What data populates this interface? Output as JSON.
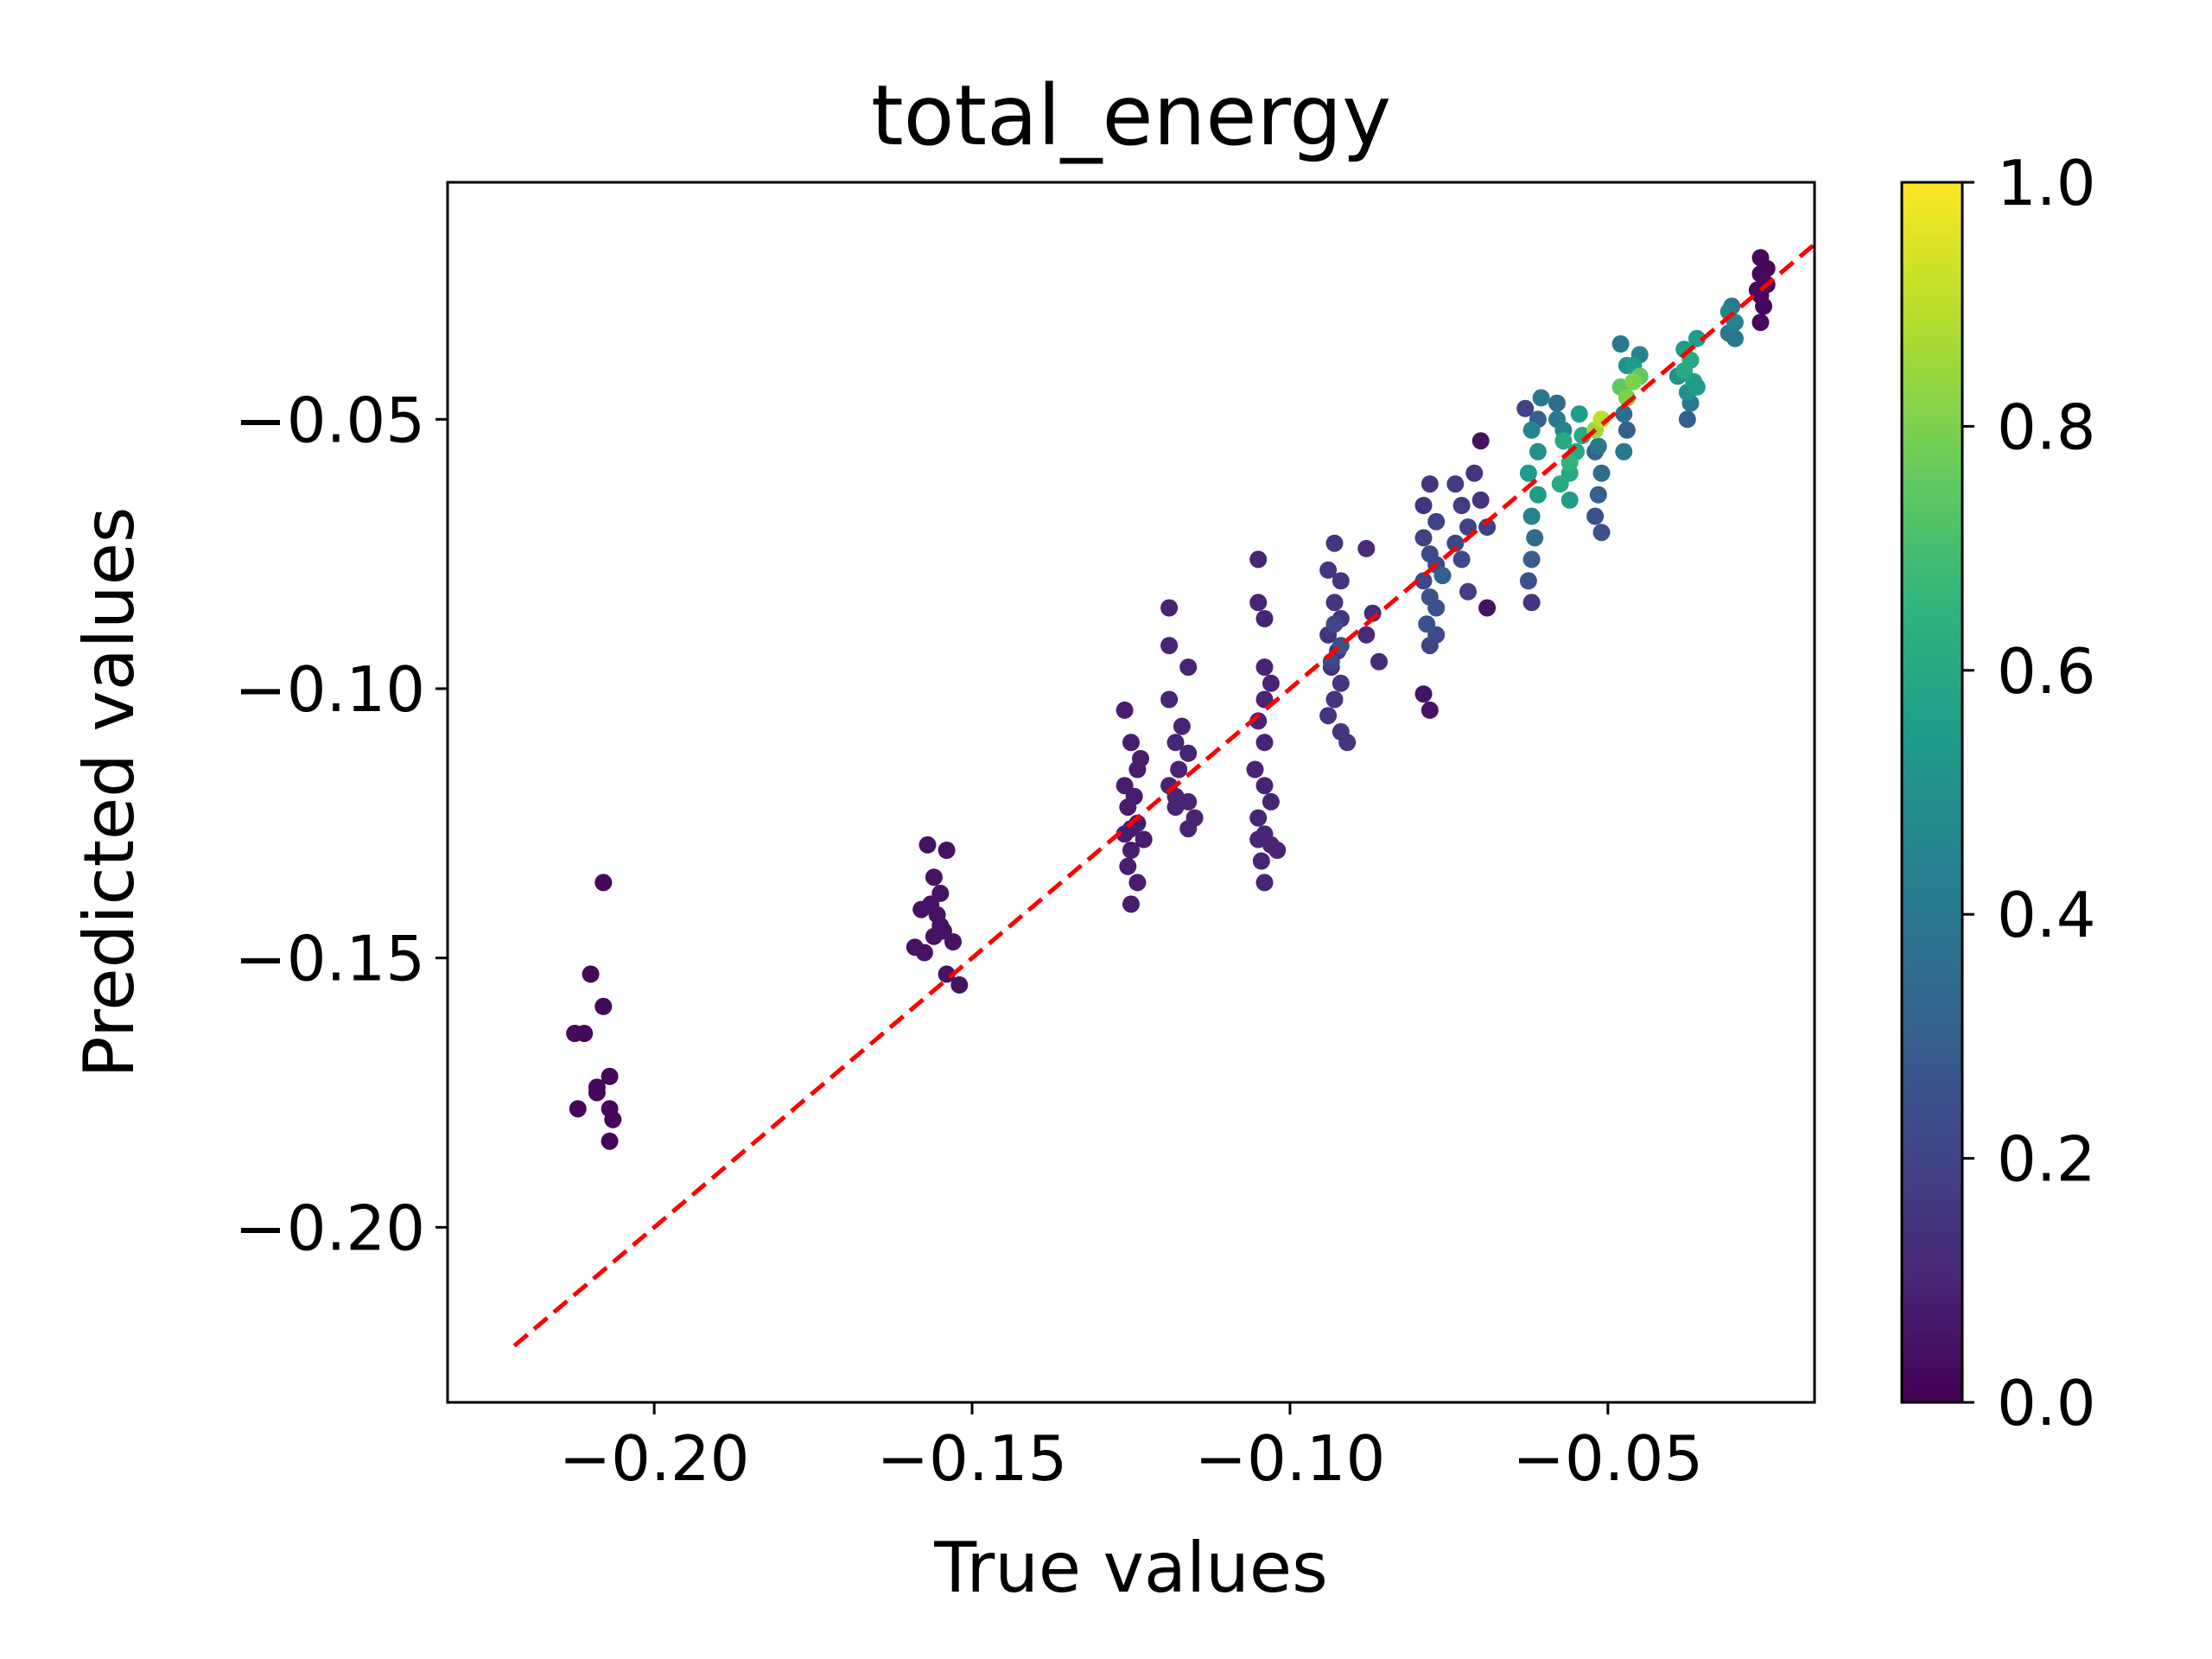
{
  "chart_data": {
    "type": "scatter",
    "title": "total_energy",
    "xlabel": "True values",
    "ylabel": "Predicted values",
    "xlim": [
      -0.2325,
      -0.0175
    ],
    "ylim": [
      -0.2325,
      -0.006
    ],
    "x_ticks": [
      -0.2,
      -0.15,
      -0.1,
      -0.05
    ],
    "x_tick_labels": [
      "−0.20",
      "−0.15",
      "−0.10",
      "−0.05"
    ],
    "y_ticks": [
      -0.2,
      -0.15,
      -0.1,
      -0.05
    ],
    "y_tick_labels": [
      "−0.20",
      "−0.15",
      "−0.10",
      "−0.05"
    ],
    "grid": false,
    "reference_line": {
      "style": "dashed",
      "color": "#ff0000",
      "from": [
        -0.222,
        -0.222
      ],
      "to": [
        -0.016,
        -0.016
      ]
    },
    "colorbar": {
      "colormap": "viridis",
      "range": [
        0.0,
        1.0
      ],
      "ticks": [
        0.0,
        0.2,
        0.4,
        0.6,
        0.8,
        1.0
      ],
      "tick_labels": [
        "0.0",
        "0.2",
        "0.4",
        "0.6",
        "0.8",
        "1.0"
      ]
    },
    "colormap_stops": [
      "#440154",
      "#482878",
      "#3e4989",
      "#31688e",
      "#26828e",
      "#1f9e89",
      "#35b779",
      "#6ece58",
      "#b5de2b",
      "#fde725"
    ],
    "series": [
      {
        "points": [
          [
            -0.2125,
            -0.164,
            0.02
          ],
          [
            -0.211,
            -0.164,
            0.02
          ],
          [
            -0.21,
            -0.153,
            0.02
          ],
          [
            -0.208,
            -0.136,
            0.02
          ],
          [
            -0.209,
            -0.174,
            0.02
          ],
          [
            -0.207,
            -0.172,
            0.02
          ],
          [
            -0.208,
            -0.159,
            0.02
          ],
          [
            -0.212,
            -0.178,
            0.02
          ],
          [
            -0.207,
            -0.178,
            0.02
          ],
          [
            -0.2065,
            -0.18,
            0.02
          ],
          [
            -0.207,
            -0.184,
            0.02
          ],
          [
            -0.209,
            -0.175,
            0.02
          ],
          [
            -0.157,
            -0.129,
            0.05
          ],
          [
            -0.154,
            -0.13,
            0.05
          ],
          [
            -0.156,
            -0.135,
            0.05
          ],
          [
            -0.155,
            -0.138,
            0.05
          ],
          [
            -0.158,
            -0.141,
            0.05
          ],
          [
            -0.1555,
            -0.142,
            0.05
          ],
          [
            -0.156,
            -0.146,
            0.05
          ],
          [
            -0.159,
            -0.148,
            0.05
          ],
          [
            -0.1545,
            -0.145,
            0.05
          ],
          [
            -0.153,
            -0.147,
            0.05
          ],
          [
            -0.1575,
            -0.149,
            0.05
          ],
          [
            -0.154,
            -0.153,
            0.05
          ],
          [
            -0.152,
            -0.155,
            0.05
          ],
          [
            -0.1565,
            -0.14,
            0.05
          ],
          [
            -0.155,
            -0.144,
            0.05
          ],
          [
            -0.126,
            -0.104,
            0.08
          ],
          [
            -0.125,
            -0.11,
            0.08
          ],
          [
            -0.124,
            -0.115,
            0.08
          ],
          [
            -0.126,
            -0.118,
            0.08
          ],
          [
            -0.1245,
            -0.12,
            0.08
          ],
          [
            -0.1255,
            -0.122,
            0.08
          ],
          [
            -0.124,
            -0.125,
            0.08
          ],
          [
            -0.126,
            -0.127,
            0.08
          ],
          [
            -0.123,
            -0.128,
            0.08
          ],
          [
            -0.125,
            -0.13,
            0.08
          ],
          [
            -0.124,
            -0.136,
            0.08
          ],
          [
            -0.125,
            -0.14,
            0.08
          ],
          [
            -0.1255,
            -0.133,
            0.08
          ],
          [
            -0.1235,
            -0.113,
            0.08
          ],
          [
            -0.125,
            -0.126,
            0.08
          ],
          [
            -0.119,
            -0.085,
            0.1
          ],
          [
            -0.119,
            -0.092,
            0.1
          ],
          [
            -0.116,
            -0.096,
            0.1
          ],
          [
            -0.119,
            -0.102,
            0.1
          ],
          [
            -0.117,
            -0.107,
            0.1
          ],
          [
            -0.118,
            -0.11,
            0.1
          ],
          [
            -0.116,
            -0.112,
            0.1
          ],
          [
            -0.1175,
            -0.115,
            0.1
          ],
          [
            -0.119,
            -0.118,
            0.1
          ],
          [
            -0.116,
            -0.121,
            0.1
          ],
          [
            -0.118,
            -0.122,
            0.1
          ],
          [
            -0.115,
            -0.124,
            0.1
          ],
          [
            -0.116,
            -0.126,
            0.1
          ],
          [
            -0.118,
            -0.12,
            0.1
          ],
          [
            -0.105,
            -0.076,
            0.1
          ],
          [
            -0.105,
            -0.084,
            0.1
          ],
          [
            -0.104,
            -0.087,
            0.1
          ],
          [
            -0.104,
            -0.096,
            0.1
          ],
          [
            -0.103,
            -0.099,
            0.1
          ],
          [
            -0.104,
            -0.102,
            0.1
          ],
          [
            -0.105,
            -0.106,
            0.1
          ],
          [
            -0.104,
            -0.11,
            0.1
          ],
          [
            -0.1055,
            -0.115,
            0.1
          ],
          [
            -0.104,
            -0.118,
            0.1
          ],
          [
            -0.103,
            -0.121,
            0.1
          ],
          [
            -0.105,
            -0.124,
            0.1
          ],
          [
            -0.104,
            -0.127,
            0.1
          ],
          [
            -0.103,
            -0.129,
            0.1
          ],
          [
            -0.1045,
            -0.132,
            0.1
          ],
          [
            -0.104,
            -0.136,
            0.1
          ],
          [
            -0.102,
            -0.13,
            0.1
          ],
          [
            -0.105,
            -0.128,
            0.1
          ],
          [
            -0.093,
            -0.073,
            0.15
          ],
          [
            -0.094,
            -0.078,
            0.15
          ],
          [
            -0.092,
            -0.08,
            0.15
          ],
          [
            -0.093,
            -0.084,
            0.15
          ],
          [
            -0.092,
            -0.087,
            0.15
          ],
          [
            -0.094,
            -0.09,
            0.15
          ],
          [
            -0.0925,
            -0.093,
            0.15
          ],
          [
            -0.0935,
            -0.096,
            0.15
          ],
          [
            -0.092,
            -0.099,
            0.15
          ],
          [
            -0.093,
            -0.102,
            0.15
          ],
          [
            -0.094,
            -0.105,
            0.15
          ],
          [
            -0.092,
            -0.108,
            0.15
          ],
          [
            -0.091,
            -0.11,
            0.15
          ],
          [
            -0.093,
            -0.088,
            0.22
          ],
          [
            -0.092,
            -0.092,
            0.25
          ],
          [
            -0.0935,
            -0.095,
            0.22
          ],
          [
            -0.088,
            -0.074,
            0.12
          ],
          [
            -0.087,
            -0.086,
            0.12
          ],
          [
            -0.088,
            -0.09,
            0.12
          ],
          [
            -0.086,
            -0.095,
            0.12
          ],
          [
            -0.078,
            -0.062,
            0.15
          ],
          [
            -0.079,
            -0.066,
            0.15
          ],
          [
            -0.077,
            -0.069,
            0.2
          ],
          [
            -0.079,
            -0.072,
            0.2
          ],
          [
            -0.078,
            -0.075,
            0.22
          ],
          [
            -0.077,
            -0.077,
            0.22
          ],
          [
            -0.079,
            -0.08,
            0.22
          ],
          [
            -0.078,
            -0.083,
            0.25
          ],
          [
            -0.077,
            -0.085,
            0.25
          ],
          [
            -0.0785,
            -0.088,
            0.25
          ],
          [
            -0.077,
            -0.09,
            0.22
          ],
          [
            -0.078,
            -0.092,
            0.2
          ],
          [
            -0.079,
            -0.101,
            0.05
          ],
          [
            -0.078,
            -0.104,
            0.05
          ],
          [
            -0.076,
            -0.079,
            0.3
          ],
          [
            -0.074,
            -0.062,
            0.18
          ],
          [
            -0.073,
            -0.066,
            0.18
          ],
          [
            -0.072,
            -0.07,
            0.2
          ],
          [
            -0.074,
            -0.073,
            0.22
          ],
          [
            -0.073,
            -0.076,
            0.22
          ],
          [
            -0.072,
            -0.082,
            0.18
          ],
          [
            -0.071,
            -0.06,
            0.15
          ],
          [
            -0.07,
            -0.065,
            0.15
          ],
          [
            -0.069,
            -0.07,
            0.2
          ],
          [
            -0.07,
            -0.054,
            0.05
          ],
          [
            -0.069,
            -0.085,
            0.05
          ],
          [
            -0.063,
            -0.048,
            0.2
          ],
          [
            -0.062,
            -0.052,
            0.45
          ],
          [
            -0.061,
            -0.056,
            0.5
          ],
          [
            -0.0625,
            -0.06,
            0.55
          ],
          [
            -0.061,
            -0.064,
            0.55
          ],
          [
            -0.062,
            -0.068,
            0.45
          ],
          [
            -0.0615,
            -0.072,
            0.35
          ],
          [
            -0.062,
            -0.076,
            0.3
          ],
          [
            -0.0625,
            -0.08,
            0.25
          ],
          [
            -0.062,
            -0.084,
            0.15
          ],
          [
            -0.061,
            -0.05,
            0.3
          ],
          [
            -0.0605,
            -0.046,
            0.4
          ],
          [
            -0.058,
            -0.05,
            0.4
          ],
          [
            -0.057,
            -0.054,
            0.6
          ],
          [
            -0.056,
            -0.058,
            0.65
          ],
          [
            -0.0575,
            -0.062,
            0.6
          ],
          [
            -0.056,
            -0.065,
            0.55
          ],
          [
            -0.057,
            -0.052,
            0.45
          ],
          [
            -0.055,
            -0.056,
            0.6
          ],
          [
            -0.056,
            -0.06,
            0.6
          ],
          [
            -0.0545,
            -0.049,
            0.55
          ],
          [
            -0.054,
            -0.053,
            0.6
          ],
          [
            -0.058,
            -0.047,
            0.35
          ],
          [
            -0.052,
            -0.052,
            0.85
          ],
          [
            -0.051,
            -0.05,
            0.9
          ],
          [
            -0.052,
            -0.056,
            0.3
          ],
          [
            -0.051,
            -0.06,
            0.35
          ],
          [
            -0.0515,
            -0.064,
            0.3
          ],
          [
            -0.052,
            -0.068,
            0.25
          ],
          [
            -0.051,
            -0.071,
            0.25
          ],
          [
            -0.0515,
            -0.055,
            0.4
          ],
          [
            -0.048,
            -0.036,
            0.4
          ],
          [
            -0.047,
            -0.04,
            0.5
          ],
          [
            -0.048,
            -0.044,
            0.75
          ],
          [
            -0.047,
            -0.046,
            0.8
          ],
          [
            -0.046,
            -0.043,
            0.8
          ],
          [
            -0.045,
            -0.042,
            0.75
          ],
          [
            -0.0475,
            -0.049,
            0.35
          ],
          [
            -0.047,
            -0.052,
            0.3
          ],
          [
            -0.0475,
            -0.056,
            0.4
          ],
          [
            -0.046,
            -0.04,
            0.55
          ],
          [
            -0.045,
            -0.038,
            0.45
          ],
          [
            -0.038,
            -0.037,
            0.55
          ],
          [
            -0.037,
            -0.039,
            0.6
          ],
          [
            -0.038,
            -0.041,
            0.6
          ],
          [
            -0.0365,
            -0.043,
            0.55
          ],
          [
            -0.0375,
            -0.045,
            0.5
          ],
          [
            -0.037,
            -0.047,
            0.4
          ],
          [
            -0.0375,
            -0.05,
            0.3
          ],
          [
            -0.036,
            -0.035,
            0.55
          ],
          [
            -0.036,
            -0.044,
            0.55
          ],
          [
            -0.039,
            -0.042,
            0.5
          ],
          [
            -0.031,
            -0.03,
            0.45
          ],
          [
            -0.03,
            -0.032,
            0.45
          ],
          [
            -0.031,
            -0.034,
            0.4
          ],
          [
            -0.03,
            -0.035,
            0.4
          ],
          [
            -0.0305,
            -0.029,
            0.4
          ],
          [
            -0.026,
            -0.02,
            0.02
          ],
          [
            -0.026,
            -0.023,
            0.02
          ],
          [
            -0.025,
            -0.025,
            0.02
          ],
          [
            -0.026,
            -0.027,
            0.02
          ],
          [
            -0.0255,
            -0.029,
            0.02
          ],
          [
            -0.026,
            -0.032,
            0.02
          ],
          [
            -0.025,
            -0.022,
            0.02
          ],
          [
            -0.0265,
            -0.026,
            0.02
          ]
        ]
      }
    ]
  }
}
